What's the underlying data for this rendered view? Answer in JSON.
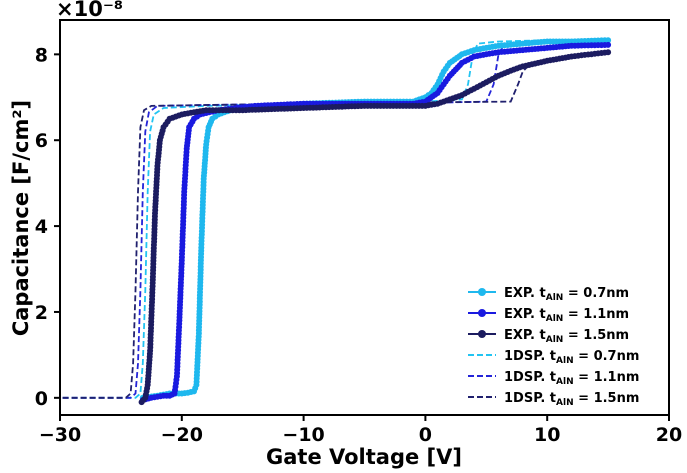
{
  "chart_data": {
    "type": "line",
    "xlabel": "Gate Voltage [V]",
    "ylabel": "Capacitance [F/cm²]",
    "y_multiplier_label": "×10⁻⁸",
    "xlim": [
      -30,
      20
    ],
    "ylim": [
      -0.4,
      8.8
    ],
    "x_ticks": [
      -30,
      -20,
      -10,
      0,
      10,
      20
    ],
    "x_tick_labels": [
      "−30",
      "−20",
      "−10",
      "0",
      "10",
      "20"
    ],
    "y_ticks": [
      0,
      2,
      4,
      6,
      8
    ],
    "y_tick_labels": [
      "0",
      "2",
      "4",
      "6",
      "8"
    ],
    "legend_position": "lower-right",
    "grid": false,
    "series": [
      {
        "name": "EXP.  tAlN = 0.7nm",
        "legend_prefix": "EXP.  t",
        "legend_sub": "AlN",
        "legend_suffix": " = 0.7nm",
        "color": "#1fb8ee",
        "style": "marker-line",
        "points": [
          [
            -23.2,
            0.0
          ],
          [
            -22.0,
            0.05
          ],
          [
            -21.0,
            0.1
          ],
          [
            -20.0,
            0.1
          ],
          [
            -19.5,
            0.12
          ],
          [
            -19.0,
            0.15
          ],
          [
            -18.8,
            0.3
          ],
          [
            -18.6,
            1.5
          ],
          [
            -18.4,
            3.5
          ],
          [
            -18.2,
            5.1
          ],
          [
            -18.0,
            5.9
          ],
          [
            -17.8,
            6.3
          ],
          [
            -17.5,
            6.5
          ],
          [
            -17.0,
            6.6
          ],
          [
            -16.0,
            6.7
          ],
          [
            -14.0,
            6.75
          ],
          [
            -10.0,
            6.85
          ],
          [
            -5.0,
            6.9
          ],
          [
            -1.0,
            6.9
          ],
          [
            0.0,
            7.0
          ],
          [
            0.5,
            7.1
          ],
          [
            1.0,
            7.3
          ],
          [
            1.5,
            7.6
          ],
          [
            2.0,
            7.8
          ],
          [
            3.0,
            8.0
          ],
          [
            4.0,
            8.1
          ],
          [
            6.0,
            8.2
          ],
          [
            8.0,
            8.25
          ],
          [
            10.0,
            8.3
          ],
          [
            12.0,
            8.3
          ],
          [
            15.0,
            8.33
          ]
        ]
      },
      {
        "name": "EXP.  tAlN = 1.1nm",
        "legend_prefix": "EXP.  t",
        "legend_sub": "AlN",
        "legend_suffix": " = 1.1nm",
        "color": "#1a1ae0",
        "style": "marker-line",
        "points": [
          [
            -23.2,
            -0.05
          ],
          [
            -22.5,
            0.0
          ],
          [
            -21.5,
            0.05
          ],
          [
            -21.0,
            0.05
          ],
          [
            -20.6,
            0.1
          ],
          [
            -20.4,
            0.5
          ],
          [
            -20.2,
            1.8
          ],
          [
            -20.0,
            3.2
          ],
          [
            -19.8,
            4.8
          ],
          [
            -19.6,
            5.8
          ],
          [
            -19.4,
            6.3
          ],
          [
            -19.0,
            6.5
          ],
          [
            -18.5,
            6.6
          ],
          [
            -17.0,
            6.7
          ],
          [
            -14.0,
            6.8
          ],
          [
            -10.0,
            6.85
          ],
          [
            -5.0,
            6.85
          ],
          [
            -1.0,
            6.85
          ],
          [
            0.0,
            6.9
          ],
          [
            1.0,
            7.1
          ],
          [
            1.5,
            7.3
          ],
          [
            2.0,
            7.5
          ],
          [
            3.0,
            7.8
          ],
          [
            4.0,
            7.95
          ],
          [
            6.0,
            8.05
          ],
          [
            8.0,
            8.1
          ],
          [
            10.0,
            8.15
          ],
          [
            12.0,
            8.2
          ],
          [
            15.0,
            8.22
          ]
        ]
      },
      {
        "name": "EXP.  tAlN = 1.5nm",
        "legend_prefix": "EXP.  t",
        "legend_sub": "AlN",
        "legend_suffix": " = 1.5nm",
        "color": "#1c1c60",
        "style": "marker-line",
        "points": [
          [
            -23.3,
            -0.1
          ],
          [
            -23.0,
            0.0
          ],
          [
            -22.8,
            0.3
          ],
          [
            -22.6,
            1.1
          ],
          [
            -22.4,
            2.6
          ],
          [
            -22.2,
            4.3
          ],
          [
            -22.0,
            5.4
          ],
          [
            -21.8,
            6.0
          ],
          [
            -21.5,
            6.3
          ],
          [
            -21.0,
            6.5
          ],
          [
            -20.0,
            6.6
          ],
          [
            -18.0,
            6.7
          ],
          [
            -15.0,
            6.7
          ],
          [
            -10.0,
            6.75
          ],
          [
            -5.0,
            6.8
          ],
          [
            0.0,
            6.8
          ],
          [
            1.0,
            6.85
          ],
          [
            2.0,
            6.95
          ],
          [
            3.0,
            7.05
          ],
          [
            4.0,
            7.2
          ],
          [
            5.0,
            7.35
          ],
          [
            6.0,
            7.5
          ],
          [
            7.0,
            7.62
          ],
          [
            8.0,
            7.72
          ],
          [
            10.0,
            7.85
          ],
          [
            12.0,
            7.95
          ],
          [
            15.0,
            8.05
          ]
        ]
      },
      {
        "name": "1DSP.  tAlN = 0.7nm",
        "legend_prefix": "1DSP.  t",
        "legend_sub": "AlN",
        "legend_suffix": " = 0.7nm",
        "color": "#22c4f2",
        "style": "dashed",
        "points": [
          [
            -32.0,
            0.0
          ],
          [
            -23.8,
            0.0
          ],
          [
            -23.4,
            0.1
          ],
          [
            -23.2,
            0.8
          ],
          [
            -23.0,
            2.5
          ],
          [
            -22.8,
            4.8
          ],
          [
            -22.6,
            6.2
          ],
          [
            -22.3,
            6.6
          ],
          [
            -21.5,
            6.75
          ],
          [
            -18.0,
            6.8
          ],
          [
            -10.0,
            6.85
          ],
          [
            0.0,
            6.9
          ],
          [
            3.0,
            6.95
          ],
          [
            3.5,
            7.3
          ],
          [
            3.9,
            8.0
          ],
          [
            4.3,
            8.25
          ],
          [
            6.0,
            8.3
          ],
          [
            10.0,
            8.33
          ],
          [
            15.0,
            8.35
          ]
        ]
      },
      {
        "name": "1DSP.  tAlN = 1.1nm",
        "legend_prefix": "1DSP.  t",
        "legend_sub": "AlN",
        "legend_suffix": " = 1.1nm",
        "color": "#2424d8",
        "style": "dashed",
        "points": [
          [
            -32.0,
            0.0
          ],
          [
            -24.2,
            0.0
          ],
          [
            -23.8,
            0.1
          ],
          [
            -23.6,
            0.8
          ],
          [
            -23.4,
            2.5
          ],
          [
            -23.2,
            4.8
          ],
          [
            -23.0,
            6.2
          ],
          [
            -22.7,
            6.65
          ],
          [
            -22.0,
            6.8
          ],
          [
            -18.0,
            6.82
          ],
          [
            -10.0,
            6.85
          ],
          [
            0.0,
            6.87
          ],
          [
            5.0,
            6.9
          ],
          [
            5.6,
            7.3
          ],
          [
            6.0,
            8.0
          ],
          [
            6.4,
            8.2
          ],
          [
            8.0,
            8.25
          ],
          [
            12.0,
            8.27
          ],
          [
            15.0,
            8.28
          ]
        ]
      },
      {
        "name": "1DSP.  tAlN = 1.5nm",
        "legend_prefix": "1DSP.  t",
        "legend_sub": "AlN",
        "legend_suffix": " = 1.5nm",
        "color": "#20206e",
        "style": "dashed",
        "points": [
          [
            -32.0,
            0.0
          ],
          [
            -24.6,
            0.0
          ],
          [
            -24.2,
            0.1
          ],
          [
            -24.0,
            0.8
          ],
          [
            -23.8,
            2.5
          ],
          [
            -23.6,
            4.8
          ],
          [
            -23.4,
            6.3
          ],
          [
            -23.1,
            6.7
          ],
          [
            -22.5,
            6.8
          ],
          [
            -18.0,
            6.82
          ],
          [
            -10.0,
            6.85
          ],
          [
            0.0,
            6.88
          ],
          [
            7.0,
            6.9
          ],
          [
            7.6,
            7.3
          ],
          [
            8.0,
            7.6
          ],
          [
            8.5,
            7.75
          ],
          [
            10.0,
            7.85
          ],
          [
            12.0,
            7.95
          ],
          [
            15.0,
            8.05
          ]
        ]
      }
    ]
  }
}
